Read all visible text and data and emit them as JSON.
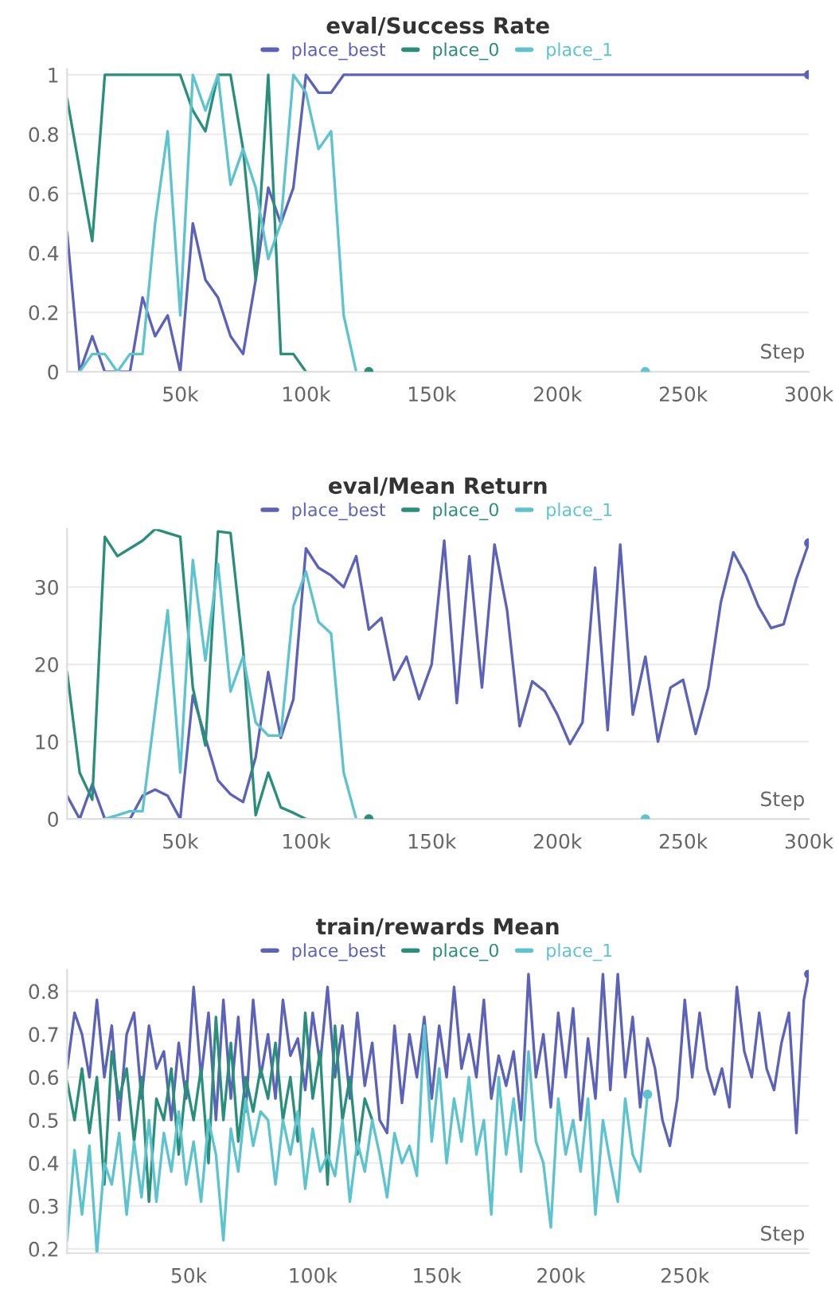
{
  "chart_data": [
    {
      "type": "line",
      "title": "eval/Success Rate",
      "xlabel": "Step",
      "xlim": [
        5000,
        300000
      ],
      "ylim": [
        0,
        1.02
      ],
      "xticks": [
        {
          "value": 50000,
          "label": "50k"
        },
        {
          "value": 100000,
          "label": "100k"
        },
        {
          "value": 150000,
          "label": "150k"
        },
        {
          "value": 200000,
          "label": "200k"
        },
        {
          "value": 250000,
          "label": "250k"
        },
        {
          "value": 300000,
          "label": "300k"
        }
      ],
      "yticks": [
        0,
        0.2,
        0.4,
        0.6,
        0.8,
        1
      ],
      "grid": "y",
      "legend": "top",
      "series": [
        {
          "name": "place_best",
          "color": "#5b62b8",
          "x": [
            5000,
            10000,
            15000,
            20000,
            25000,
            30000,
            35000,
            40000,
            45000,
            50000,
            55000,
            60000,
            65000,
            70000,
            75000,
            80000,
            85000,
            90000,
            95000,
            100000,
            105000,
            110000,
            115000,
            300000
          ],
          "values": [
            0.47,
            0,
            0.12,
            0,
            0,
            0,
            0.25,
            0.12,
            0.19,
            0,
            0.5,
            0.31,
            0.25,
            0.12,
            0.06,
            0.31,
            0.62,
            0.5,
            0.62,
            1,
            0.94,
            0.94,
            1,
            1
          ]
        },
        {
          "name": "place_0",
          "color": "#2a8f7a",
          "x": [
            5000,
            10000,
            15000,
            20000,
            25000,
            30000,
            35000,
            40000,
            45000,
            50000,
            55000,
            60000,
            65000,
            70000,
            75000,
            80000,
            85000,
            90000,
            95000,
            100000
          ],
          "values": [
            0.92,
            0.68,
            0.44,
            1,
            1,
            1,
            1,
            1,
            1,
            1,
            0.88,
            0.81,
            1,
            1,
            0.75,
            0.31,
            1,
            0.06,
            0.06,
            0
          ]
        },
        {
          "name": "place_1",
          "color": "#5cc3cf",
          "x": [
            10000,
            15000,
            20000,
            25000,
            30000,
            35000,
            40000,
            45000,
            50000,
            55000,
            60000,
            65000,
            70000,
            75000,
            80000,
            85000,
            90000,
            95000,
            100000,
            105000,
            110000,
            115000,
            120000
          ],
          "values": [
            0,
            0.06,
            0.06,
            0,
            0.06,
            0.06,
            0.5,
            0.81,
            0.19,
            1,
            0.88,
            1,
            0.63,
            0.75,
            0.62,
            0.38,
            0.5,
            1,
            0.94,
            0.75,
            0.81,
            0.19,
            0
          ]
        },
        {
          "type": "scatter",
          "color": "#5b62b8",
          "x": [
            300000
          ],
          "values": [
            1
          ]
        },
        {
          "type": "scatter",
          "color": "#2a8f7a",
          "x": [
            125000
          ],
          "values": [
            0
          ]
        },
        {
          "type": "scatter",
          "color": "#5cc3cf",
          "x": [
            235000
          ],
          "values": [
            0
          ]
        }
      ]
    },
    {
      "type": "line",
      "title": "eval/Mean Return",
      "xlabel": "Step",
      "xlim": [
        5000,
        300000
      ],
      "ylim": [
        0,
        37.5
      ],
      "xticks": [
        {
          "value": 50000,
          "label": "50k"
        },
        {
          "value": 100000,
          "label": "100k"
        },
        {
          "value": 150000,
          "label": "150k"
        },
        {
          "value": 200000,
          "label": "200k"
        },
        {
          "value": 250000,
          "label": "250k"
        },
        {
          "value": 300000,
          "label": "300k"
        }
      ],
      "yticks": [
        0,
        10,
        20,
        30
      ],
      "grid": "y",
      "legend": "top",
      "series": [
        {
          "name": "place_best",
          "color": "#5b62b8",
          "x": [
            5000,
            10000,
            15000,
            20000,
            25000,
            30000,
            35000,
            40000,
            45000,
            50000,
            55000,
            60000,
            65000,
            70000,
            75000,
            80000,
            85000,
            90000,
            95000,
            100000,
            105000,
            110000,
            115000,
            120000,
            125000,
            130000,
            135000,
            140000,
            145000,
            150000,
            155000,
            160000,
            165000,
            170000,
            175000,
            180000,
            185000,
            190000,
            195000,
            200000,
            205000,
            210000,
            215000,
            220000,
            225000,
            230000,
            235000,
            240000,
            245000,
            250000,
            255000,
            260000,
            265000,
            270000,
            275000,
            280000,
            285000,
            290000,
            295000,
            300000
          ],
          "values": [
            3,
            0,
            4.5,
            0,
            0,
            0,
            3,
            3.8,
            3,
            0,
            16,
            10.5,
            5,
            3.2,
            2.2,
            8,
            19,
            10.5,
            15.5,
            35,
            32.5,
            31.5,
            30,
            34,
            24.5,
            26,
            18,
            21,
            15.5,
            20,
            36,
            15,
            34,
            17,
            35.5,
            27,
            12,
            17.8,
            16.5,
            13.5,
            9.7,
            12.5,
            32.5,
            11.5,
            35.5,
            13.5,
            21,
            10,
            17,
            18,
            11,
            17,
            28,
            34.5,
            31.5,
            27.5,
            24.7,
            25.2,
            31,
            35.7
          ]
        },
        {
          "name": "place_0",
          "color": "#2a8f7a",
          "x": [
            5000,
            10000,
            15000,
            20000,
            25000,
            30000,
            35000,
            40000,
            45000,
            50000,
            55000,
            60000,
            65000,
            70000,
            75000,
            80000,
            85000,
            90000,
            95000,
            100000
          ],
          "values": [
            19,
            6,
            2.5,
            36.5,
            34,
            35,
            36,
            37.5,
            37,
            36.5,
            17,
            9.5,
            37.2,
            37,
            22,
            0.5,
            6,
            1.5,
            0.8,
            0
          ]
        },
        {
          "name": "place_1",
          "color": "#5cc3cf",
          "x": [
            20000,
            25000,
            30000,
            35000,
            40000,
            45000,
            50000,
            55000,
            60000,
            65000,
            70000,
            75000,
            80000,
            85000,
            90000,
            95000,
            100000,
            105000,
            110000,
            115000,
            120000
          ],
          "values": [
            0,
            0.5,
            1,
            1,
            14,
            27,
            6,
            33.5,
            20.5,
            33,
            16.5,
            21,
            12.5,
            10.8,
            10.8,
            27.5,
            32,
            25.5,
            24,
            6,
            0
          ]
        },
        {
          "type": "scatter",
          "color": "#5b62b8",
          "x": [
            300000
          ],
          "values": [
            35.7
          ]
        },
        {
          "type": "scatter",
          "color": "#2a8f7a",
          "x": [
            125000
          ],
          "values": [
            0
          ]
        },
        {
          "type": "scatter",
          "color": "#5cc3cf",
          "x": [
            235000
          ],
          "values": [
            0
          ]
        }
      ]
    },
    {
      "type": "line",
      "title": "train/rewards Mean",
      "xlabel": "Step",
      "xlim": [
        1000,
        300000
      ],
      "ylim": [
        0.19,
        0.85
      ],
      "xticks": [
        {
          "value": 50000,
          "label": "50k"
        },
        {
          "value": 100000,
          "label": "100k"
        },
        {
          "value": 150000,
          "label": "150k"
        },
        {
          "value": 200000,
          "label": "200k"
        },
        {
          "value": 250000,
          "label": "250k"
        }
      ],
      "yticks": [
        0.2,
        0.3,
        0.4,
        0.5,
        0.6,
        0.7,
        0.8
      ],
      "grid": "y",
      "legend": "top",
      "series": [
        {
          "name": "place_best",
          "color": "#5b62b8",
          "x": [
            1000,
            4000,
            7000,
            10000,
            13000,
            16000,
            19000,
            22000,
            25000,
            28000,
            31000,
            34000,
            37000,
            40000,
            43000,
            46000,
            49000,
            52000,
            55000,
            58000,
            61000,
            64000,
            67000,
            70000,
            73000,
            76000,
            79000,
            82000,
            85000,
            88000,
            91000,
            94000,
            97000,
            100000,
            103000,
            106000,
            109000,
            112000,
            115000,
            118000,
            121000,
            124000,
            127000,
            130000,
            133000,
            136000,
            139000,
            142000,
            145000,
            148000,
            151000,
            154000,
            157000,
            160000,
            163000,
            166000,
            169000,
            172000,
            175000,
            178000,
            181000,
            184000,
            187000,
            190000,
            193000,
            196000,
            199000,
            202000,
            205000,
            208000,
            211000,
            214000,
            217000,
            220000,
            223000,
            226000,
            229000,
            232000,
            235000,
            238000,
            241000,
            244000,
            247000,
            250000,
            253000,
            256000,
            259000,
            262000,
            265000,
            268000,
            271000,
            274000,
            277000,
            280000,
            283000,
            286000,
            289000,
            292000,
            295000,
            298000,
            300000
          ],
          "values": [
            0.62,
            0.75,
            0.7,
            0.6,
            0.78,
            0.6,
            0.72,
            0.5,
            0.7,
            0.75,
            0.55,
            0.72,
            0.62,
            0.66,
            0.5,
            0.68,
            0.55,
            0.81,
            0.6,
            0.75,
            0.5,
            0.78,
            0.55,
            0.74,
            0.52,
            0.78,
            0.6,
            0.7,
            0.55,
            0.78,
            0.65,
            0.69,
            0.57,
            0.75,
            0.63,
            0.81,
            0.6,
            0.72,
            0.55,
            0.75,
            0.58,
            0.68,
            0.5,
            0.47,
            0.72,
            0.54,
            0.7,
            0.6,
            0.74,
            0.55,
            0.72,
            0.6,
            0.81,
            0.62,
            0.7,
            0.6,
            0.78,
            0.55,
            0.65,
            0.58,
            0.66,
            0.5,
            0.84,
            0.6,
            0.7,
            0.53,
            0.75,
            0.6,
            0.76,
            0.5,
            0.69,
            0.55,
            0.84,
            0.57,
            0.84,
            0.6,
            0.74,
            0.53,
            0.69,
            0.62,
            0.5,
            0.44,
            0.55,
            0.78,
            0.6,
            0.75,
            0.62,
            0.56,
            0.62,
            0.53,
            0.81,
            0.66,
            0.6,
            0.75,
            0.62,
            0.57,
            0.68,
            0.75,
            0.47,
            0.78,
            0.84
          ]
        },
        {
          "name": "place_0",
          "color": "#2a8f7a",
          "x": [
            1000,
            4000,
            7000,
            10000,
            13000,
            16000,
            19000,
            22000,
            25000,
            28000,
            31000,
            34000,
            37000,
            40000,
            43000,
            46000,
            49000,
            52000,
            55000,
            58000,
            61000,
            64000,
            67000,
            70000,
            73000,
            76000,
            79000,
            82000,
            85000,
            88000,
            91000,
            94000,
            97000,
            100000,
            103000,
            106000,
            109000,
            112000,
            115000,
            118000,
            121000,
            124000
          ],
          "values": [
            0.59,
            0.5,
            0.62,
            0.47,
            0.6,
            0.35,
            0.66,
            0.55,
            0.62,
            0.45,
            0.6,
            0.31,
            0.55,
            0.5,
            0.62,
            0.42,
            0.59,
            0.5,
            0.62,
            0.4,
            0.74,
            0.5,
            0.68,
            0.45,
            0.6,
            0.52,
            0.62,
            0.55,
            0.68,
            0.5,
            0.6,
            0.45,
            0.75,
            0.55,
            0.66,
            0.35,
            0.72,
            0.5,
            0.6,
            0.42,
            0.55,
            0.5
          ]
        },
        {
          "name": "place_1",
          "color": "#5cc3cf",
          "x": [
            1000,
            4000,
            7000,
            10000,
            13000,
            16000,
            19000,
            22000,
            25000,
            28000,
            31000,
            34000,
            37000,
            40000,
            43000,
            46000,
            49000,
            52000,
            55000,
            58000,
            61000,
            64000,
            67000,
            70000,
            73000,
            76000,
            79000,
            82000,
            85000,
            88000,
            91000,
            94000,
            97000,
            100000,
            103000,
            106000,
            109000,
            112000,
            115000,
            118000,
            121000,
            124000,
            127000,
            130000,
            133000,
            136000,
            139000,
            142000,
            145000,
            148000,
            151000,
            154000,
            157000,
            160000,
            163000,
            166000,
            169000,
            172000,
            175000,
            178000,
            181000,
            184000,
            187000,
            190000,
            193000,
            196000,
            199000,
            202000,
            205000,
            208000,
            211000,
            214000,
            217000,
            220000,
            223000,
            226000,
            229000,
            232000,
            235000
          ],
          "values": [
            0.22,
            0.43,
            0.28,
            0.44,
            0.19,
            0.4,
            0.35,
            0.47,
            0.28,
            0.45,
            0.32,
            0.5,
            0.31,
            0.47,
            0.38,
            0.52,
            0.35,
            0.45,
            0.31,
            0.5,
            0.42,
            0.22,
            0.48,
            0.38,
            0.55,
            0.44,
            0.52,
            0.5,
            0.35,
            0.5,
            0.42,
            0.52,
            0.34,
            0.48,
            0.38,
            0.42,
            0.37,
            0.5,
            0.31,
            0.45,
            0.38,
            0.5,
            0.42,
            0.32,
            0.47,
            0.4,
            0.44,
            0.37,
            0.72,
            0.45,
            0.62,
            0.4,
            0.55,
            0.45,
            0.6,
            0.42,
            0.5,
            0.28,
            0.6,
            0.42,
            0.55,
            0.38,
            0.66,
            0.45,
            0.4,
            0.25,
            0.55,
            0.42,
            0.5,
            0.38,
            0.55,
            0.28,
            0.5,
            0.4,
            0.31,
            0.55,
            0.42,
            0.38,
            0.56
          ]
        },
        {
          "type": "scatter",
          "color": "#5b62b8",
          "x": [
            300000
          ],
          "values": [
            0.84
          ]
        },
        {
          "type": "scatter",
          "color": "#5cc3cf",
          "x": [
            235000
          ],
          "values": [
            0.56
          ]
        }
      ]
    }
  ]
}
